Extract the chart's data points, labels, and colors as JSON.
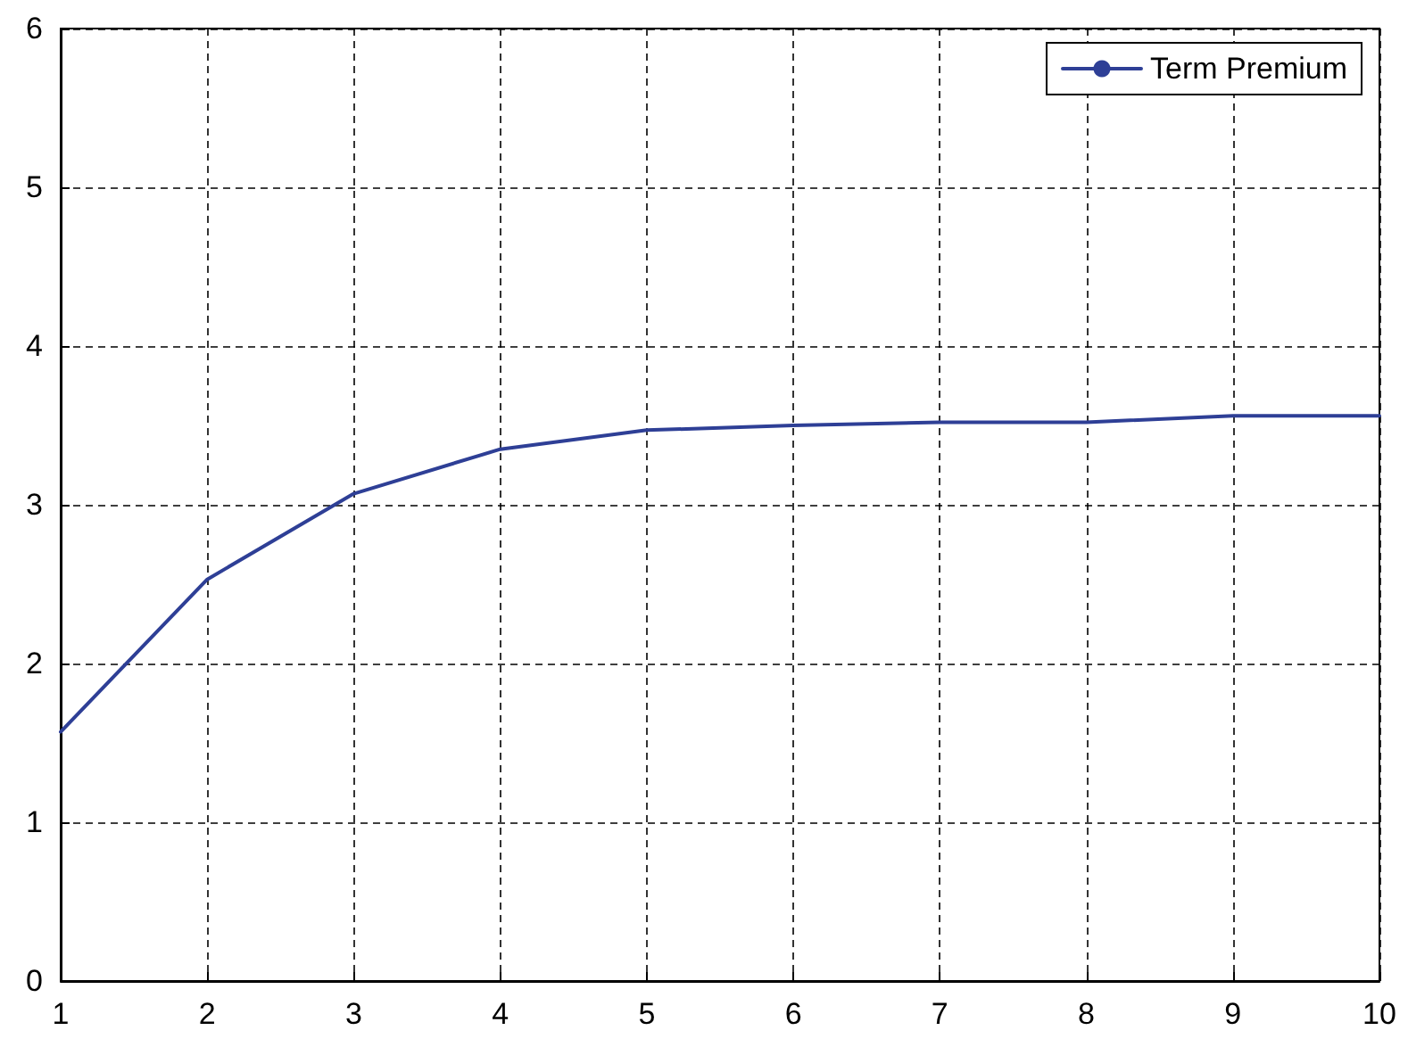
{
  "chart_data": {
    "type": "line",
    "x": [
      1,
      2,
      3,
      4,
      5,
      6,
      7,
      8,
      9,
      10
    ],
    "series": [
      {
        "name": "Term Premium",
        "color": "#2e3f96",
        "values": [
          1.57,
          2.53,
          3.07,
          3.35,
          3.47,
          3.5,
          3.52,
          3.52,
          3.56,
          3.56
        ]
      }
    ],
    "xlim": [
      1,
      10
    ],
    "xticks": [
      1,
      2,
      3,
      4,
      5,
      6,
      7,
      8,
      9,
      10
    ],
    "ylim": [
      0,
      6
    ],
    "yticks": [
      0,
      1,
      2,
      3,
      4,
      5,
      6
    ],
    "grid": true,
    "legend": "top right",
    "marker": "none",
    "line_style": "solid"
  }
}
